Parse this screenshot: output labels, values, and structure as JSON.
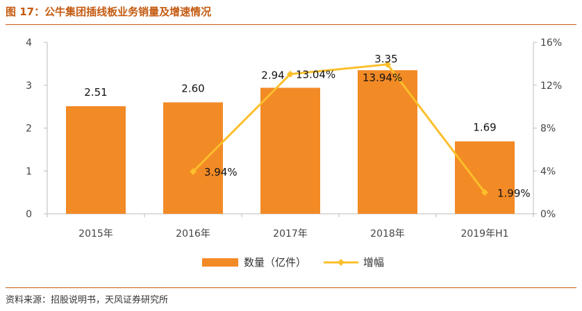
{
  "title": "图 17：公牛集团插线板业务销量及增速情况",
  "source": "资料来源：招股说明书，天风证券研究所",
  "colors": {
    "bar": "#f28a26",
    "line": "#fbbf2b",
    "accent": "#c45a10"
  },
  "chart_data": {
    "type": "bar+line",
    "categories": [
      "2015年",
      "2016年",
      "2017年",
      "2018年",
      "2019年H1"
    ],
    "series": [
      {
        "name": "数量（亿件）",
        "type": "bar",
        "axis": "left",
        "values": [
          2.51,
          2.6,
          2.94,
          3.35,
          1.69
        ],
        "labels": [
          "2.51",
          "2.60",
          "2.94",
          "3.35",
          "1.69"
        ]
      },
      {
        "name": "增幅",
        "type": "line",
        "axis": "right",
        "values": [
          null,
          3.94,
          13.04,
          13.94,
          1.99
        ],
        "labels": [
          "",
          "3.94%",
          "13.04%",
          "13.94%",
          "1.99%"
        ]
      }
    ],
    "y_left": {
      "range": [
        0,
        4
      ],
      "ticks": [
        "0",
        "1",
        "2",
        "3",
        "4"
      ]
    },
    "y_right": {
      "range": [
        0,
        16
      ],
      "ticks": [
        "0%",
        "4%",
        "8%",
        "12%",
        "16%"
      ]
    },
    "legend": "bottom",
    "grid": false
  }
}
